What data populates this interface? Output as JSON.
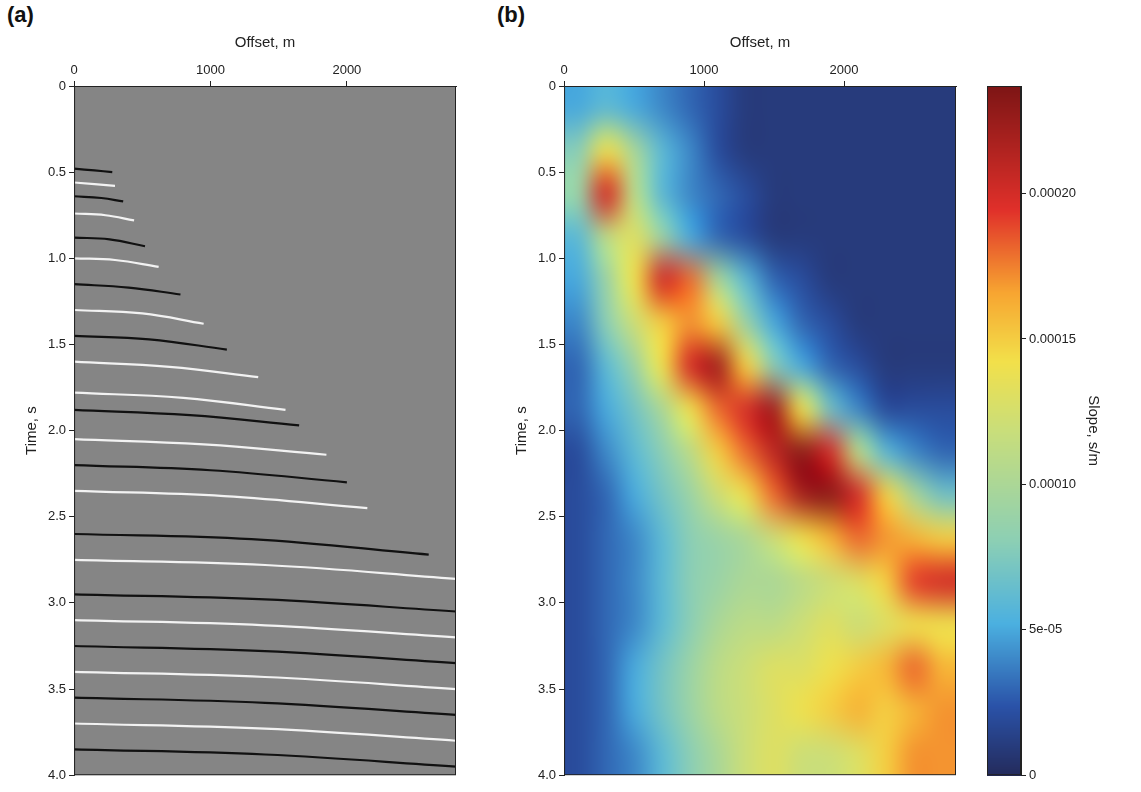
{
  "chart_data": [
    {
      "type": "line",
      "panel_label": "(a)",
      "xlabel": "Offset, m",
      "ylabel": "Time, s",
      "xlim": [
        0,
        2800
      ],
      "xticks": [
        0,
        1000,
        2000
      ],
      "ylim": [
        0,
        4
      ],
      "yticks": [
        0,
        0.5,
        {
          "value": 1,
          "label": "1.0"
        },
        1.5,
        {
          "value": 2,
          "label": "2.0"
        },
        2.5,
        {
          "value": 3,
          "label": "3.0"
        },
        3.5,
        {
          "value": 4,
          "label": "4.0"
        }
      ],
      "events": [
        {
          "color": "#111111",
          "x": [
            0,
            150,
            280
          ],
          "y": [
            0.48,
            0.49,
            0.5
          ]
        },
        {
          "color": "#f2f2f2",
          "x": [
            0,
            300
          ],
          "y": [
            0.56,
            0.58
          ]
        },
        {
          "color": "#111111",
          "x": [
            0,
            200,
            360
          ],
          "y": [
            0.64,
            0.65,
            0.67
          ]
        },
        {
          "color": "#f2f2f2",
          "x": [
            0,
            230,
            440
          ],
          "y": [
            0.74,
            0.75,
            0.78
          ]
        },
        {
          "color": "#111111",
          "x": [
            0,
            260,
            520
          ],
          "y": [
            0.88,
            0.89,
            0.93
          ]
        },
        {
          "color": "#f2f2f2",
          "x": [
            0,
            300,
            620
          ],
          "y": [
            1.0,
            1.01,
            1.05
          ]
        },
        {
          "color": "#111111",
          "x": [
            0,
            400,
            780
          ],
          "y": [
            1.15,
            1.17,
            1.21
          ]
        },
        {
          "color": "#f2f2f2",
          "x": [
            0,
            500,
            950
          ],
          "y": [
            1.3,
            1.32,
            1.38
          ]
        },
        {
          "color": "#111111",
          "x": [
            0,
            550,
            1120
          ],
          "y": [
            1.45,
            1.47,
            1.53
          ]
        },
        {
          "color": "#f2f2f2",
          "x": [
            0,
            700,
            1350
          ],
          "y": [
            1.6,
            1.63,
            1.69
          ]
        },
        {
          "color": "#f2f2f2",
          "x": [
            0,
            800,
            1550
          ],
          "y": [
            1.78,
            1.81,
            1.88
          ]
        },
        {
          "color": "#111111",
          "x": [
            0,
            850,
            1650
          ],
          "y": [
            1.88,
            1.91,
            1.97
          ]
        },
        {
          "color": "#f2f2f2",
          "x": [
            0,
            950,
            1850
          ],
          "y": [
            2.05,
            2.08,
            2.14
          ]
        },
        {
          "color": "#111111",
          "x": [
            0,
            1000,
            2000
          ],
          "y": [
            2.2,
            2.23,
            2.3
          ]
        },
        {
          "color": "#f2f2f2",
          "x": [
            0,
            1100,
            2150
          ],
          "y": [
            2.35,
            2.38,
            2.45
          ]
        },
        {
          "color": "#111111",
          "x": [
            0,
            1300,
            2600
          ],
          "y": [
            2.6,
            2.63,
            2.72
          ]
        },
        {
          "color": "#f2f2f2",
          "x": [
            0,
            1400,
            2800
          ],
          "y": [
            2.75,
            2.78,
            2.86
          ]
        },
        {
          "color": "#111111",
          "x": [
            0,
            1400,
            2800
          ],
          "y": [
            2.95,
            2.98,
            3.05
          ]
        },
        {
          "color": "#f2f2f2",
          "x": [
            0,
            1400,
            2800
          ],
          "y": [
            3.1,
            3.13,
            3.2
          ]
        },
        {
          "color": "#111111",
          "x": [
            0,
            1400,
            2800
          ],
          "y": [
            3.25,
            3.28,
            3.35
          ]
        },
        {
          "color": "#f2f2f2",
          "x": [
            0,
            1400,
            2800
          ],
          "y": [
            3.4,
            3.43,
            3.5
          ]
        },
        {
          "color": "#111111",
          "x": [
            0,
            1400,
            2800
          ],
          "y": [
            3.55,
            3.58,
            3.65
          ]
        },
        {
          "color": "#f2f2f2",
          "x": [
            0,
            1400,
            2800
          ],
          "y": [
            3.7,
            3.73,
            3.8
          ]
        },
        {
          "color": "#111111",
          "x": [
            0,
            1400,
            2800
          ],
          "y": [
            3.85,
            3.88,
            3.95
          ]
        }
      ]
    },
    {
      "type": "heatmap",
      "panel_label": "(b)",
      "xlabel": "Offset, m",
      "ylabel": "Time, s",
      "xlim": [
        0,
        2800
      ],
      "xticks": [
        0,
        1000,
        2000
      ],
      "ylim": [
        0,
        4
      ],
      "yticks": [
        0,
        0.5,
        {
          "value": 1,
          "label": "1.0"
        },
        1.5,
        {
          "value": 2,
          "label": "2.0"
        },
        2.5,
        {
          "value": 3,
          "label": "3.0"
        },
        3.5,
        {
          "value": 4,
          "label": "4.0"
        }
      ],
      "x_bins": [
        0,
        200,
        400,
        600,
        800,
        1000,
        1200,
        1400,
        1600,
        1800,
        2000,
        2200,
        2400,
        2600,
        2800
      ],
      "y_bins": [
        0,
        0.25,
        0.5,
        0.75,
        1.0,
        1.25,
        1.5,
        1.75,
        2.0,
        2.25,
        2.5,
        2.75,
        3.0,
        3.25,
        3.5,
        3.75,
        4.0
      ],
      "cells": [
        [
          5e-05,
          6e-05,
          5e-05,
          4e-05,
          3e-05,
          2e-05,
          1e-05,
          1e-05,
          1e-05,
          1e-05,
          1e-05,
          1e-05,
          1e-05,
          1e-05
        ],
        [
          8e-05,
          0.00014,
          0.0001,
          6e-05,
          4e-05,
          2e-05,
          1e-05,
          1e-05,
          1e-05,
          1e-05,
          1e-05,
          1e-05,
          1e-05,
          1e-05
        ],
        [
          9e-05,
          0.0002,
          0.00011,
          6e-05,
          4e-05,
          3e-05,
          2e-05,
          1e-05,
          1e-05,
          1e-05,
          1e-05,
          1e-05,
          1e-05,
          1e-05
        ],
        [
          6e-05,
          0.00011,
          0.00013,
          9e-05,
          5e-05,
          3e-05,
          2e-05,
          1e-05,
          1e-05,
          1e-05,
          1e-05,
          1e-05,
          1e-05,
          1e-05
        ],
        [
          5e-05,
          9e-05,
          0.00014,
          0.0002,
          0.00018,
          0.0001,
          6e-05,
          3e-05,
          2e-05,
          1e-05,
          1e-05,
          1e-05,
          1e-05,
          1e-05
        ],
        [
          4e-05,
          8e-05,
          0.00012,
          0.00015,
          0.00017,
          0.00015,
          9e-05,
          5e-05,
          3e-05,
          2e-05,
          1e-05,
          1e-05,
          1e-05,
          1e-05
        ],
        [
          3e-05,
          6e-05,
          9e-05,
          0.00014,
          0.0002,
          0.00022,
          0.00015,
          8e-05,
          5e-05,
          3e-05,
          2e-05,
          1e-05,
          1e-05,
          1e-05
        ],
        [
          3e-05,
          5e-05,
          7e-05,
          0.0001,
          0.00014,
          0.00018,
          0.0002,
          0.00022,
          0.00014,
          7e-05,
          4e-05,
          2e-05,
          2e-05,
          2e-05
        ],
        [
          2e-05,
          4e-05,
          6e-05,
          8e-05,
          0.00011,
          0.00015,
          0.00018,
          0.00021,
          0.00023,
          0.0002,
          0.00011,
          6e-05,
          4e-05,
          3e-05
        ],
        [
          2e-05,
          3e-05,
          5e-05,
          7e-05,
          9e-05,
          0.00012,
          0.00014,
          0.00018,
          0.00022,
          0.00023,
          0.0002,
          0.00015,
          0.0001,
          7e-05
        ],
        [
          2e-05,
          3e-05,
          4e-05,
          6e-05,
          8e-05,
          9e-05,
          0.0001,
          0.00012,
          0.00014,
          0.00016,
          0.00018,
          0.00017,
          0.00016,
          0.00015
        ],
        [
          2e-05,
          3e-05,
          4e-05,
          6e-05,
          8e-05,
          9e-05,
          0.0001,
          0.0001,
          0.00011,
          0.00012,
          0.00013,
          0.00015,
          0.00019,
          0.0002
        ],
        [
          2e-05,
          3e-05,
          4e-05,
          6e-05,
          8e-05,
          0.0001,
          0.00011,
          0.00011,
          0.00012,
          0.00013,
          0.00012,
          0.00013,
          0.00014,
          0.00014
        ],
        [
          2e-05,
          3e-05,
          5e-05,
          7e-05,
          9e-05,
          0.00011,
          0.00012,
          0.00013,
          0.00013,
          0.00014,
          0.00015,
          0.00016,
          0.00018,
          0.00016
        ],
        [
          2e-05,
          3e-05,
          5e-05,
          7e-05,
          9e-05,
          0.00011,
          0.00012,
          0.00013,
          0.00014,
          0.00015,
          0.00016,
          0.00015,
          0.00016,
          0.00017
        ],
        [
          2e-05,
          3e-05,
          4e-05,
          6e-05,
          8e-05,
          0.0001,
          0.00012,
          0.00013,
          0.00012,
          0.00012,
          0.00013,
          0.00015,
          0.00017,
          0.00017
        ]
      ],
      "colorbar": {
        "label": "Slope, s/m",
        "range": [
          0,
          0.000237
        ],
        "ticks": [
          0,
          {
            "value": 5e-05,
            "label": "5e-05"
          },
          {
            "value": 0.0001,
            "label": "0.00010"
          },
          0.00015,
          {
            "value": 0.0002,
            "label": "0.00020"
          }
        ]
      }
    }
  ]
}
